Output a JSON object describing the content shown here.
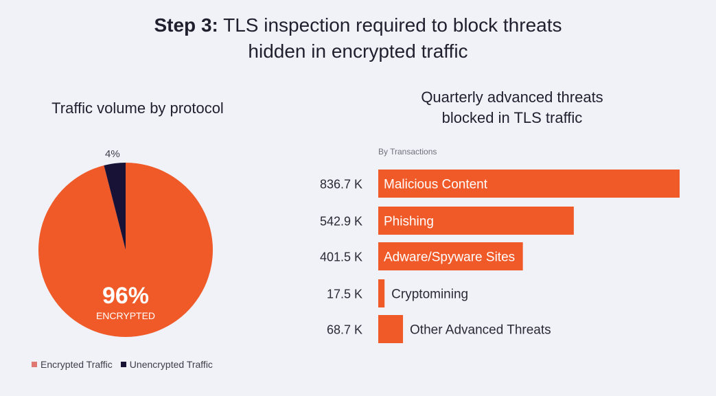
{
  "header": {
    "title_bold": "Step 3:",
    "title_rest_line1": "TLS inspection required to block threats",
    "title_line2": "hidden in encrypted traffic"
  },
  "colors": {
    "accent": "#f05a28",
    "dark": "#181236",
    "background": "#f1f2f8",
    "legend_encrypted": "#e07771",
    "legend_unencrypted": "#181236"
  },
  "chart_data": [
    {
      "type": "pie",
      "title": "Traffic volume by protocol",
      "series": [
        {
          "name": "Encrypted Traffic",
          "value": 96,
          "label": "96%",
          "sublabel": "ENCRYPTED",
          "color": "#f05a28"
        },
        {
          "name": "Unencrypted Traffic",
          "value": 4,
          "label": "4%",
          "color": "#181236"
        }
      ],
      "legend": [
        "Encrypted Traffic",
        "Unencrypted Traffic"
      ],
      "legend_position": "bottom-left"
    },
    {
      "type": "bar",
      "orientation": "horizontal",
      "title_line1": "Quarterly advanced threats",
      "title_line2": "blocked in TLS traffic",
      "subtitle": "By Transactions",
      "unit": "K",
      "categories": [
        "Malicious Content",
        "Phishing",
        "Adware/Spyware Sites",
        "Cryptomining",
        "Other Advanced Threats"
      ],
      "values": [
        836.7,
        542.9,
        401.5,
        17.5,
        68.7
      ],
      "value_labels": [
        "836.7 K",
        "542.9 K",
        "401.5 K",
        "17.5 K",
        "68.7 K"
      ],
      "label_inside": [
        true,
        true,
        true,
        false,
        false
      ],
      "xlim": [
        0,
        836.7
      ],
      "color": "#f05a28"
    }
  ]
}
